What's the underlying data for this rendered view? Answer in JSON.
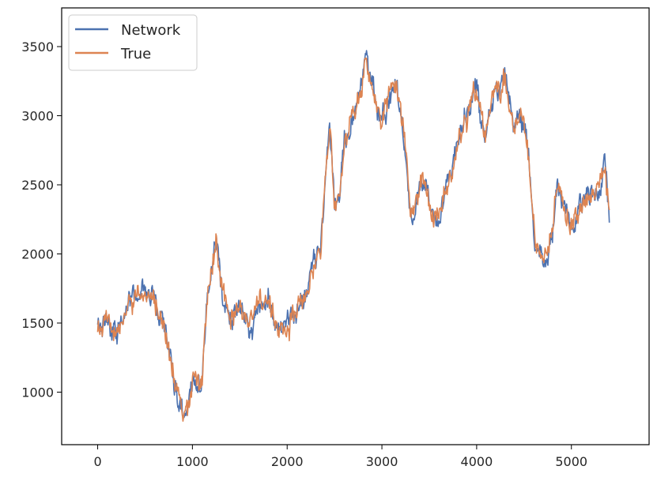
{
  "chart_data": {
    "type": "line",
    "xlim": [
      -380,
      5820
    ],
    "ylim": [
      620,
      3780
    ],
    "xticks": [
      0,
      1000,
      2000,
      3000,
      4000,
      5000
    ],
    "yticks": [
      1000,
      1500,
      2000,
      2500,
      3000,
      3500
    ],
    "xtick_labels": [
      "0",
      "1000",
      "2000",
      "3000",
      "4000",
      "5000"
    ],
    "ytick_labels": [
      "1000",
      "1500",
      "2000",
      "2500",
      "3000",
      "3500"
    ],
    "legend_position": "top-left",
    "grid": false,
    "noise_amplitude": 95,
    "series": [
      {
        "name": "Network",
        "color": "#4c72b0",
        "x": [
          0,
          100,
          150,
          200,
          300,
          400,
          500,
          600,
          700,
          800,
          850,
          900,
          950,
          1000,
          1050,
          1100,
          1150,
          1200,
          1250,
          1300,
          1350,
          1400,
          1500,
          1600,
          1700,
          1800,
          1850,
          1900,
          2000,
          2100,
          2200,
          2300,
          2350,
          2400,
          2450,
          2500,
          2550,
          2600,
          2700,
          2800,
          2830,
          2900,
          3000,
          3100,
          3150,
          3200,
          3250,
          3300,
          3350,
          3400,
          3450,
          3500,
          3550,
          3600,
          3700,
          3800,
          3900,
          4000,
          4050,
          4100,
          4150,
          4200,
          4250,
          4300,
          4350,
          4400,
          4450,
          4500,
          4550,
          4600,
          4650,
          4700,
          4750,
          4800,
          4850,
          4900,
          4950,
          5000,
          5100,
          5200,
          5300,
          5350,
          5400
        ],
        "y": [
          1450,
          1520,
          1430,
          1420,
          1600,
          1700,
          1770,
          1700,
          1450,
          1100,
          900,
          830,
          870,
          1100,
          1050,
          1000,
          1600,
          1900,
          2100,
          1800,
          1650,
          1550,
          1600,
          1500,
          1600,
          1700,
          1550,
          1450,
          1500,
          1550,
          1750,
          1950,
          2000,
          2500,
          2950,
          2300,
          2400,
          2800,
          3000,
          3300,
          3450,
          3200,
          2950,
          3200,
          3250,
          3000,
          2750,
          2300,
          2250,
          2500,
          2550,
          2350,
          2250,
          2300,
          2500,
          2750,
          3000,
          3200,
          2950,
          2850,
          3050,
          3250,
          3150,
          3300,
          3100,
          2900,
          3000,
          2950,
          2700,
          2200,
          2000,
          1950,
          2000,
          2150,
          2500,
          2400,
          2300,
          2200,
          2350,
          2400,
          2500,
          2700,
          2300
        ]
      },
      {
        "name": "True",
        "color": "#dd8452",
        "x": [
          0,
          100,
          150,
          200,
          300,
          400,
          500,
          600,
          700,
          800,
          850,
          900,
          950,
          1000,
          1050,
          1100,
          1150,
          1200,
          1250,
          1300,
          1350,
          1400,
          1500,
          1600,
          1700,
          1800,
          1850,
          1900,
          2000,
          2100,
          2200,
          2300,
          2350,
          2400,
          2450,
          2500,
          2550,
          2600,
          2700,
          2800,
          2830,
          2900,
          3000,
          3100,
          3150,
          3200,
          3250,
          3300,
          3350,
          3400,
          3450,
          3500,
          3550,
          3600,
          3700,
          3800,
          3900,
          4000,
          4050,
          4100,
          4150,
          4200,
          4250,
          4300,
          4350,
          4400,
          4450,
          4500,
          4550,
          4600,
          4650,
          4700,
          4750,
          4800,
          4850,
          4900,
          4950,
          5000,
          5100,
          5200,
          5300,
          5350,
          5400
        ],
        "y": [
          1440,
          1500,
          1440,
          1430,
          1600,
          1700,
          1760,
          1690,
          1460,
          1110,
          920,
          850,
          880,
          1110,
          1060,
          1010,
          1600,
          1880,
          2080,
          1790,
          1650,
          1560,
          1600,
          1510,
          1600,
          1690,
          1560,
          1470,
          1500,
          1560,
          1740,
          1940,
          2000,
          2480,
          2930,
          2310,
          2400,
          2780,
          2990,
          3280,
          3420,
          3190,
          2960,
          3190,
          3230,
          3000,
          2760,
          2320,
          2260,
          2490,
          2540,
          2350,
          2260,
          2310,
          2500,
          2740,
          2980,
          3180,
          2950,
          2860,
          3040,
          3230,
          3140,
          3280,
          3090,
          2900,
          2990,
          2940,
          2700,
          2220,
          2020,
          1970,
          2010,
          2160,
          2490,
          2390,
          2300,
          2210,
          2340,
          2390,
          2490,
          2680,
          2310
        ]
      }
    ]
  }
}
